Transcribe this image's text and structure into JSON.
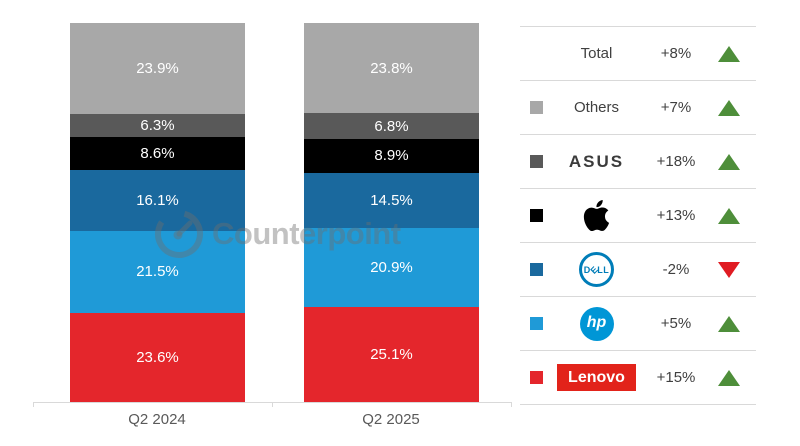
{
  "chart_data": {
    "type": "bar",
    "stacked": true,
    "title": "",
    "categories": [
      "Q2 2024",
      "Q2 2025"
    ],
    "unit": "%",
    "ylim": [
      0,
      100
    ],
    "grid": false,
    "legend_position": "right",
    "series": [
      {
        "name": "Lenovo",
        "color": "#e4262c",
        "values": [
          23.6,
          25.1
        ]
      },
      {
        "name": "HP",
        "color": "#1f9ad7",
        "values": [
          21.5,
          20.9
        ]
      },
      {
        "name": "Dell",
        "color": "#1a699e",
        "values": [
          16.1,
          14.5
        ]
      },
      {
        "name": "Apple",
        "color": "#000000",
        "values": [
          8.6,
          8.9
        ]
      },
      {
        "name": "ASUS",
        "color": "#595959",
        "values": [
          6.3,
          6.8
        ]
      },
      {
        "name": "Others",
        "color": "#a8a8a8",
        "values": [
          23.9,
          23.8
        ]
      }
    ]
  },
  "legend": {
    "rows": [
      {
        "label": "Total",
        "change": "+8%",
        "direction": "up",
        "icon": "none",
        "swatch": ""
      },
      {
        "label": "Others",
        "change": "+7%",
        "direction": "up",
        "icon": "text",
        "swatch": "#a8a8a8"
      },
      {
        "label": "ASUS",
        "change": "+18%",
        "direction": "up",
        "icon": "asus-logo",
        "swatch": "#595959"
      },
      {
        "label": "Apple",
        "change": "+13%",
        "direction": "up",
        "icon": "apple-logo",
        "swatch": "#000000"
      },
      {
        "label": "Dell",
        "change": "-2%",
        "direction": "down",
        "icon": "dell-logo",
        "swatch": "#1a699e"
      },
      {
        "label": "HP",
        "change": "+5%",
        "direction": "up",
        "icon": "hp-logo",
        "swatch": "#1f9ad7"
      },
      {
        "label": "Lenovo",
        "change": "+15%",
        "direction": "up",
        "icon": "lenovo-logo",
        "swatch": "#e4262c"
      }
    ],
    "up_color": "#4e8e3a",
    "down_color": "#e01b22",
    "logo_texts": {
      "asus": "ASUS",
      "hp": "hp",
      "lenovo": "Lenovo",
      "dell_d": "D",
      "dell_e": "E",
      "dell_ll": "LL"
    }
  },
  "watermark": {
    "text": "Counterpoint"
  }
}
